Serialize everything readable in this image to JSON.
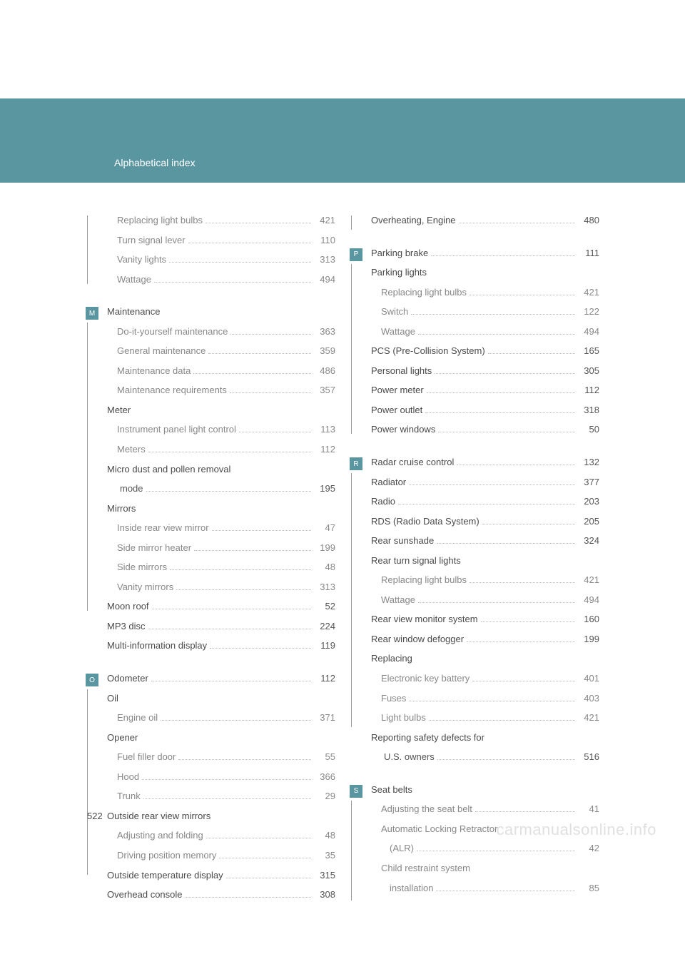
{
  "header": {
    "title": "Alphabetical index"
  },
  "page_number": "522",
  "watermark": "carmanualsonline.info",
  "colors": {
    "band": "#5a96a0",
    "badge_bg": "#5a96a0",
    "badge_fg": "#ffffff",
    "text_main": "#4a4a4a",
    "text_sub": "#888888",
    "dots": "#bbbbbb",
    "watermark": "#e0e0e0",
    "bg": "#ffffff"
  },
  "left": [
    {
      "badge": null,
      "rule_height": 96,
      "entries": [
        {
          "lvl": "sub",
          "label": "Replacing light bulbs",
          "page": "421"
        },
        {
          "lvl": "sub",
          "label": "Turn signal lever",
          "page": "110"
        },
        {
          "lvl": "sub",
          "label": "Vanity lights",
          "page": "313"
        },
        {
          "lvl": "sub",
          "label": "Wattage",
          "page": "494"
        }
      ]
    },
    {
      "badge": "M",
      "rule_height": 404,
      "entries": [
        {
          "lvl": "main",
          "label": "Maintenance",
          "page": ""
        },
        {
          "lvl": "sub",
          "label": "Do-it-yourself maintenance",
          "page": "363"
        },
        {
          "lvl": "sub",
          "label": "General maintenance",
          "page": "359"
        },
        {
          "lvl": "sub",
          "label": "Maintenance data",
          "page": "486"
        },
        {
          "lvl": "sub",
          "label": "Maintenance requirements",
          "page": "357"
        },
        {
          "lvl": "main",
          "label": "Meter",
          "page": ""
        },
        {
          "lvl": "sub",
          "label": "Instrument panel light control",
          "page": "113"
        },
        {
          "lvl": "sub",
          "label": "Meters",
          "page": "112"
        },
        {
          "lvl": "main",
          "label": "Micro dust and pollen removal",
          "page": ""
        },
        {
          "lvl": "cont",
          "label": "mode",
          "page": "195"
        },
        {
          "lvl": "main",
          "label": "Mirrors",
          "page": ""
        },
        {
          "lvl": "sub",
          "label": "Inside rear view mirror",
          "page": "47"
        },
        {
          "lvl": "sub",
          "label": "Side mirror heater",
          "page": "199"
        },
        {
          "lvl": "sub",
          "label": "Side mirrors",
          "page": "48"
        },
        {
          "lvl": "sub",
          "label": "Vanity mirrors",
          "page": "313"
        },
        {
          "lvl": "main",
          "label": "Moon roof",
          "page": "52"
        },
        {
          "lvl": "main",
          "label": "MP3 disc",
          "page": "224"
        },
        {
          "lvl": "main",
          "label": "Multi-information display",
          "page": "119"
        }
      ]
    },
    {
      "badge": "O",
      "rule_height": 260,
      "entries": [
        {
          "lvl": "main",
          "label": "Odometer",
          "page": "112"
        },
        {
          "lvl": "main",
          "label": "Oil",
          "page": ""
        },
        {
          "lvl": "sub",
          "label": "Engine oil",
          "page": "371"
        },
        {
          "lvl": "main",
          "label": "Opener",
          "page": ""
        },
        {
          "lvl": "sub",
          "label": "Fuel filler door",
          "page": "55"
        },
        {
          "lvl": "sub",
          "label": "Hood",
          "page": "366"
        },
        {
          "lvl": "sub",
          "label": "Trunk",
          "page": "29"
        },
        {
          "lvl": "main",
          "label": "Outside rear view mirrors",
          "page": ""
        },
        {
          "lvl": "sub",
          "label": "Adjusting and folding",
          "page": "48"
        },
        {
          "lvl": "sub",
          "label": "Driving position memory",
          "page": "35"
        },
        {
          "lvl": "main",
          "label": "Outside temperature display",
          "page": "315"
        },
        {
          "lvl": "main",
          "label": "Overhead console",
          "page": "308"
        }
      ]
    }
  ],
  "right": [
    {
      "badge": null,
      "rule_height": 20,
      "entries": [
        {
          "lvl": "main",
          "label": "Overheating, Engine",
          "page": "480"
        }
      ]
    },
    {
      "badge": "P",
      "rule_height": 238,
      "entries": [
        {
          "lvl": "main",
          "label": "Parking brake",
          "page": "111"
        },
        {
          "lvl": "main",
          "label": "Parking lights",
          "page": ""
        },
        {
          "lvl": "sub",
          "label": "Replacing light bulbs",
          "page": "421"
        },
        {
          "lvl": "sub",
          "label": "Switch",
          "page": "122"
        },
        {
          "lvl": "sub",
          "label": "Wattage",
          "page": "494"
        },
        {
          "lvl": "main",
          "label": "PCS (Pre-Collision System)",
          "page": "165"
        },
        {
          "lvl": "main",
          "label": "Personal lights",
          "page": "305"
        },
        {
          "lvl": "main",
          "label": "Power meter",
          "page": "112"
        },
        {
          "lvl": "main",
          "label": "Power outlet",
          "page": "318"
        },
        {
          "lvl": "main",
          "label": "Power windows",
          "page": "50"
        }
      ]
    },
    {
      "badge": "R",
      "rule_height": 356,
      "entries": [
        {
          "lvl": "main",
          "label": "Radar cruise control",
          "page": "132"
        },
        {
          "lvl": "main",
          "label": "Radiator",
          "page": "377"
        },
        {
          "lvl": "main",
          "label": "Radio",
          "page": "203"
        },
        {
          "lvl": "main",
          "label": "RDS (Radio Data System)",
          "page": "205"
        },
        {
          "lvl": "main",
          "label": "Rear sunshade",
          "page": "324"
        },
        {
          "lvl": "main",
          "label": "Rear turn signal lights",
          "page": ""
        },
        {
          "lvl": "sub",
          "label": "Replacing light bulbs",
          "page": "421"
        },
        {
          "lvl": "sub",
          "label": "Wattage",
          "page": "494"
        },
        {
          "lvl": "main",
          "label": "Rear view monitor system",
          "page": "160"
        },
        {
          "lvl": "main",
          "label": "Rear window defogger",
          "page": "199"
        },
        {
          "lvl": "main",
          "label": "Replacing",
          "page": ""
        },
        {
          "lvl": "sub",
          "label": "Electronic key battery",
          "page": "401"
        },
        {
          "lvl": "sub",
          "label": "Fuses",
          "page": "403"
        },
        {
          "lvl": "sub",
          "label": "Light bulbs",
          "page": "421"
        },
        {
          "lvl": "main",
          "label": "Reporting safety defects for",
          "page": ""
        },
        {
          "lvl": "cont",
          "label": "U.S. owners",
          "page": "516"
        }
      ]
    },
    {
      "badge": "S",
      "rule_height": 140,
      "entries": [
        {
          "lvl": "main",
          "label": "Seat belts",
          "page": ""
        },
        {
          "lvl": "sub",
          "label": "Adjusting the seat belt",
          "page": "41"
        },
        {
          "lvl": "sub",
          "label": "Automatic Locking Retractor",
          "page": ""
        },
        {
          "lvl": "sub2",
          "label": "(ALR)",
          "page": "42"
        },
        {
          "lvl": "sub",
          "label": "Child restraint system",
          "page": ""
        },
        {
          "lvl": "sub2",
          "label": "installation",
          "page": "85"
        }
      ]
    }
  ]
}
